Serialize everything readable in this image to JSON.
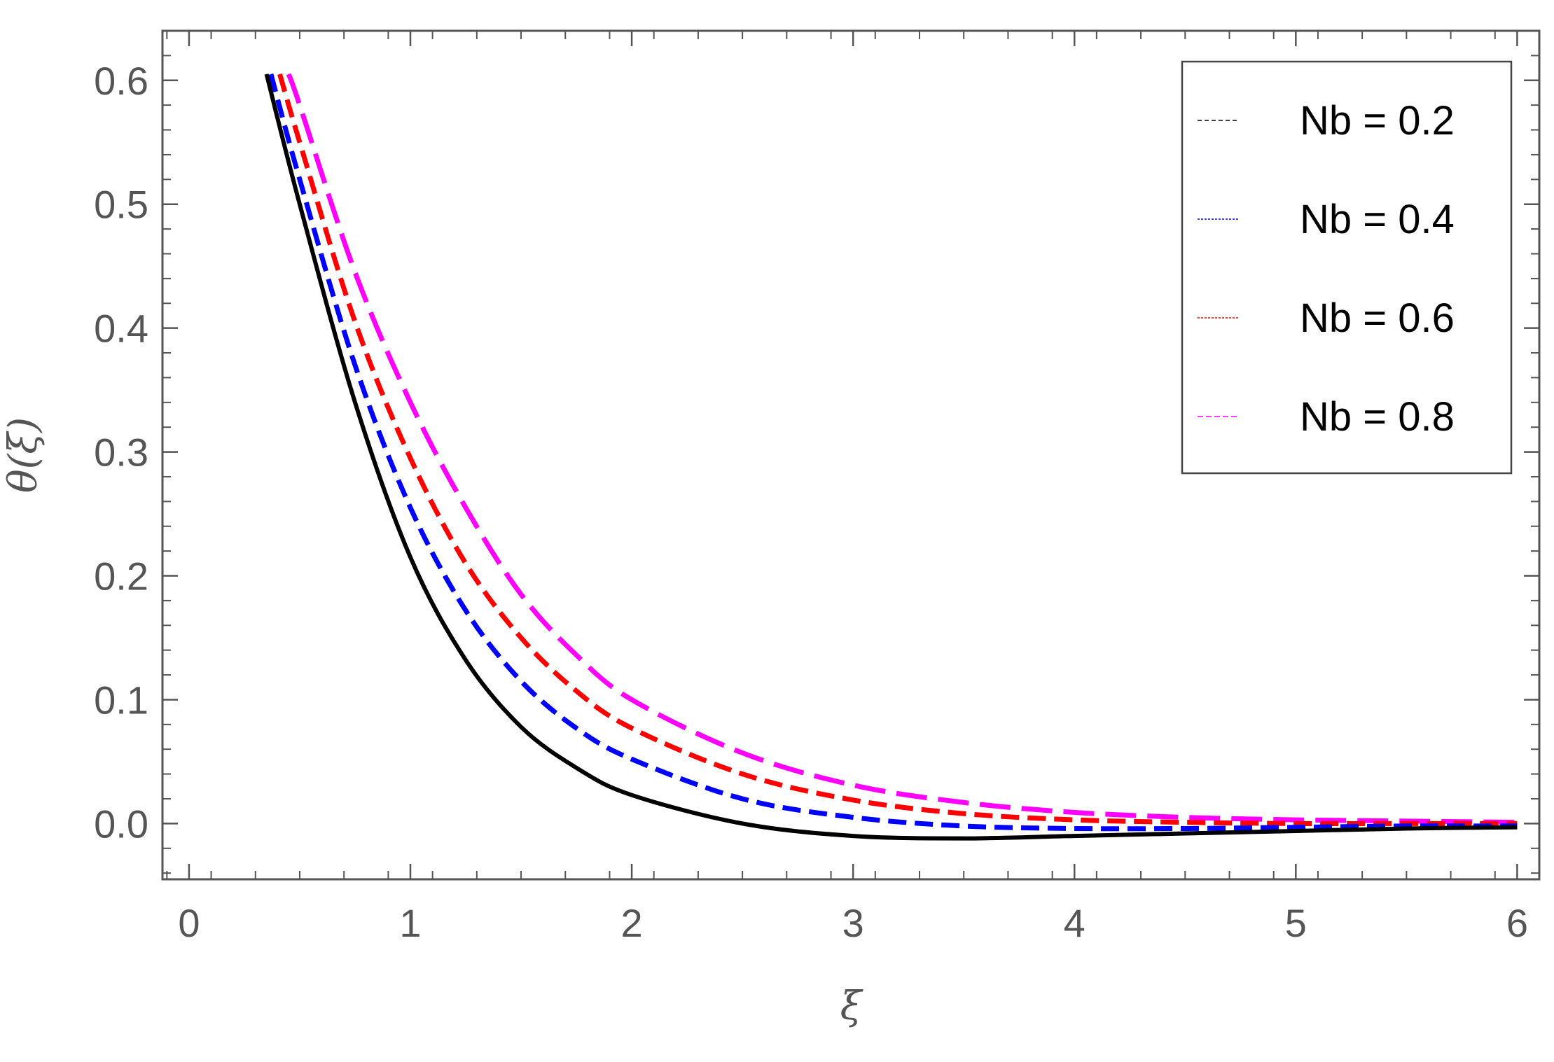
{
  "chart_data": {
    "type": "line",
    "title": "",
    "xlabel": "ξ",
    "ylabel": "θ(ξ)",
    "xlim": [
      -0.12,
      6.1
    ],
    "ylim": [
      -0.045,
      0.64
    ],
    "x_ticks": [
      0,
      1,
      2,
      3,
      4,
      5,
      6
    ],
    "x_tick_labels": [
      "0",
      "1",
      "2",
      "3",
      "4",
      "5",
      "6"
    ],
    "y_ticks": [
      0.0,
      0.1,
      0.2,
      0.3,
      0.4,
      0.5,
      0.6
    ],
    "y_tick_labels": [
      "0.0",
      "0.1",
      "0.2",
      "0.3",
      "0.4",
      "0.5",
      "0.6"
    ],
    "grid": false,
    "legend_position": "top-right",
    "series": [
      {
        "name": "Nb = 0.2",
        "color": "#000000",
        "style": "solid",
        "x": [
          0.35,
          0.5,
          0.75,
          1.0,
          1.25,
          1.5,
          1.75,
          2.0,
          2.5,
          3.0,
          3.5,
          4.0,
          4.5,
          5.0,
          5.5,
          6.0
        ],
        "y": [
          0.605,
          0.5,
          0.34,
          0.215,
          0.132,
          0.078,
          0.045,
          0.023,
          0.0,
          -0.01,
          -0.012,
          -0.01,
          -0.008,
          -0.006,
          -0.004,
          -0.003
        ]
      },
      {
        "name": "Nb = 0.4",
        "color": "#0000ff",
        "style": "dashed",
        "x": [
          0.37,
          0.5,
          0.75,
          1.0,
          1.25,
          1.5,
          1.75,
          2.0,
          2.5,
          3.0,
          3.5,
          4.0,
          4.5,
          5.0,
          5.5,
          6.0
        ],
        "y": [
          0.605,
          0.52,
          0.37,
          0.255,
          0.172,
          0.115,
          0.077,
          0.052,
          0.02,
          0.005,
          -0.002,
          -0.004,
          -0.004,
          -0.003,
          -0.002,
          -0.002
        ]
      },
      {
        "name": "Nb = 0.6",
        "color": "#ff0000",
        "style": "dashed",
        "x": [
          0.41,
          0.5,
          0.75,
          1.0,
          1.25,
          1.5,
          1.75,
          2.0,
          2.5,
          3.0,
          3.5,
          4.0,
          4.5,
          5.0,
          5.5,
          6.0
        ],
        "y": [
          0.605,
          0.55,
          0.405,
          0.295,
          0.21,
          0.15,
          0.107,
          0.077,
          0.04,
          0.019,
          0.008,
          0.003,
          0.001,
          0.0,
          0.0,
          0.0
        ]
      },
      {
        "name": "Nb = 0.8",
        "color": "#ff00ff",
        "style": "long-dashed",
        "x": [
          0.45,
          0.5,
          0.75,
          1.0,
          1.25,
          1.5,
          1.75,
          2.0,
          2.5,
          3.0,
          3.5,
          4.0,
          4.5,
          5.0,
          5.5,
          6.0
        ],
        "y": [
          0.605,
          0.58,
          0.445,
          0.34,
          0.255,
          0.185,
          0.136,
          0.1,
          0.057,
          0.031,
          0.017,
          0.009,
          0.005,
          0.003,
          0.002,
          0.001
        ]
      }
    ]
  }
}
